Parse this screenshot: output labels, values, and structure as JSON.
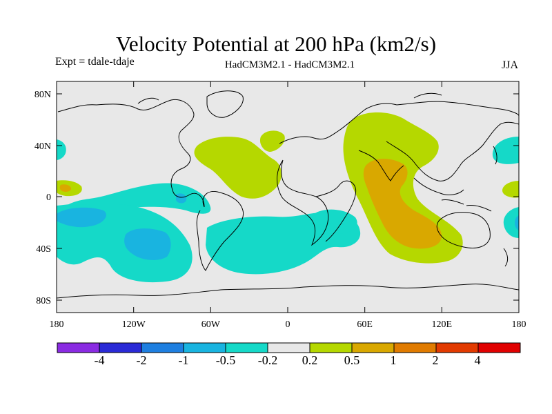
{
  "title": "Velocity Potential at 200 hPa (km2/s)",
  "experiment": "Expt = tdale-tdaje",
  "models": "HadCM3M2.1 - HadCM3M2.1",
  "season": "JJA",
  "lat_ticks": [
    "80N",
    "40N",
    "0",
    "40S",
    "80S"
  ],
  "lon_ticks": [
    "180",
    "120W",
    "60W",
    "0",
    "60E",
    "120E",
    "180"
  ],
  "colorbar": {
    "colors": [
      "#8a2be2",
      "#2a2ad6",
      "#1e7fe0",
      "#19b4e0",
      "#15d9c8",
      "#e8e8e8",
      "#b5d800",
      "#d9a800",
      "#e07b00",
      "#e23a00",
      "#e00000"
    ],
    "labels": [
      "-4",
      "-2",
      "-1",
      "-0.5",
      "-0.2",
      "0.2",
      "0.5",
      "1",
      "2",
      "4"
    ]
  },
  "colors": {
    "land_bg": "#e8e8e8",
    "neg_light": "#15d9c8",
    "neg_mid": "#19b4e0",
    "neg_strong": "#1e7fe0",
    "pos_light": "#b5d800",
    "pos_mid": "#d9a800",
    "pos_strong": "#e07b00"
  }
}
